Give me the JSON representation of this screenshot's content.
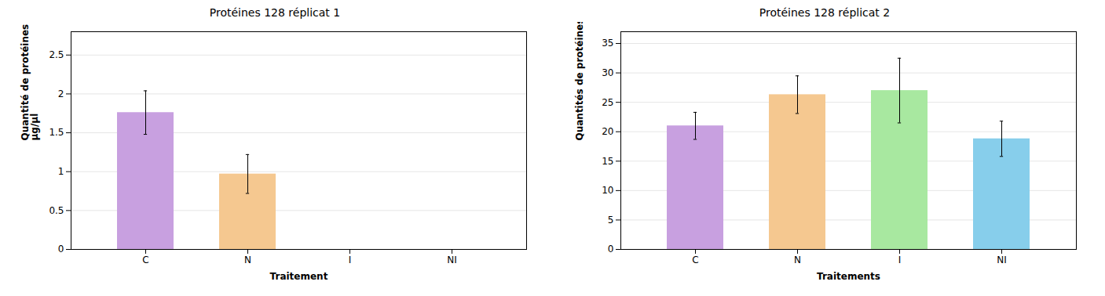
{
  "chart_data": [
    {
      "type": "bar",
      "title": "Protéines 128 réplicat 1",
      "categories": [
        "C",
        "N",
        "I",
        "NI"
      ],
      "values": [
        1.76,
        0.97,
        0,
        0
      ],
      "errors": [
        0.28,
        0.25,
        0,
        0
      ],
      "colors": [
        "#c8a0e0",
        "#f5c890",
        "#a8d8a8",
        "#87ceeb"
      ],
      "xlabel": "Traitement",
      "ylabel": "Quantité de protéines en\nμg/μl",
      "ylim": [
        0,
        2.8
      ],
      "yticks": [
        0,
        0.5,
        1,
        1.5,
        2,
        2.5
      ],
      "grid": true
    },
    {
      "type": "bar",
      "title": "Protéines 128 réplicat 2",
      "categories": [
        "C",
        "N",
        "I",
        "NI"
      ],
      "values": [
        21.0,
        26.3,
        27.0,
        18.8
      ],
      "errors": [
        2.3,
        3.2,
        5.5,
        3.0
      ],
      "colors": [
        "#c8a0e0",
        "#f5c890",
        "#a8e8a0",
        "#87ceeb"
      ],
      "xlabel": "Traitements",
      "ylabel": "Quantités de protéines en μg/μl",
      "ylim": [
        0,
        37
      ],
      "yticks": [
        0,
        5,
        10,
        15,
        20,
        25,
        30,
        35
      ],
      "grid": true
    }
  ]
}
